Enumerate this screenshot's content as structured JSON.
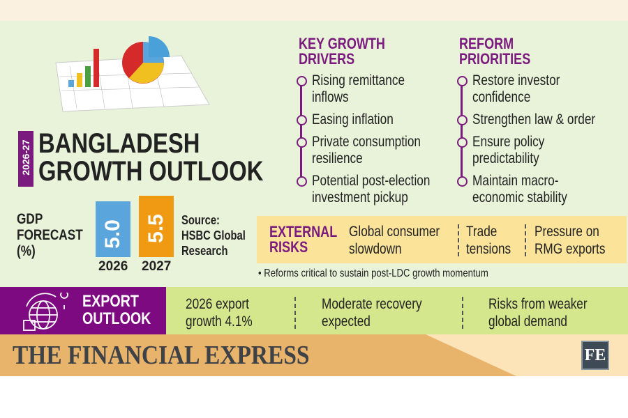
{
  "header": {
    "year_badge": "2026-27",
    "title_line1": "BANGLADESH",
    "title_line2": "GROWTH OUTLOOK"
  },
  "drivers": {
    "heading_line1": "KEY GROWTH",
    "heading_line2": "DRIVERS",
    "items": [
      [
        "Rising remittance",
        "inflows"
      ],
      [
        "Easing inflation",
        ""
      ],
      [
        "Private consumption",
        "resilience"
      ],
      [
        "Potential post-election",
        "investment pickup"
      ]
    ]
  },
  "reforms": {
    "heading_line1": "REFORM",
    "heading_line2": "PRIORITIES",
    "items": [
      [
        "Restore investor",
        "confidence"
      ],
      [
        "Strengthen law & order",
        ""
      ],
      [
        "Ensure policy",
        "predictability"
      ],
      [
        "Maintain macro-",
        "economic stability"
      ]
    ]
  },
  "gdp": {
    "label_line1": "GDP",
    "label_line2": "FORECAST",
    "label_line3": "(%)",
    "source_line1": "Source:",
    "source_line2": "HSBC Global",
    "source_line3": "Research"
  },
  "chart_data": {
    "type": "bar",
    "categories": [
      "2026",
      "2027"
    ],
    "values": [
      5.0,
      5.5
    ],
    "value_labels": [
      "5.0",
      "5.5"
    ],
    "colors": [
      "#5aa5dc",
      "#f09a14"
    ],
    "title": "GDP FORECAST (%)"
  },
  "risks": {
    "heading_line1": "EXTERNAL",
    "heading_line2": "RISKS",
    "items": [
      [
        "Global consumer",
        "slowdown"
      ],
      [
        "Trade",
        "tensions"
      ],
      [
        "Pressure on",
        "RMG exports"
      ]
    ],
    "note": "Reforms critical to sustain post-LDC growth momentum"
  },
  "export": {
    "heading_line1": "EXPORT",
    "heading_line2": "OUTLOOK",
    "items": [
      [
        "2026 export",
        "growth 4.1%"
      ],
      [
        "Moderate recovery",
        "expected"
      ],
      [
        "Risks from weaker",
        "global demand"
      ]
    ]
  },
  "footer": {
    "brand": "THE FINANCIAL EXPRESS",
    "logo": "FE"
  },
  "colors": {
    "purple": "#7b1a7e",
    "background": "#e9f3da",
    "risk_panel": "#fbe49a",
    "export_panel": "#d4e78c",
    "footer": "#e8b46c"
  }
}
